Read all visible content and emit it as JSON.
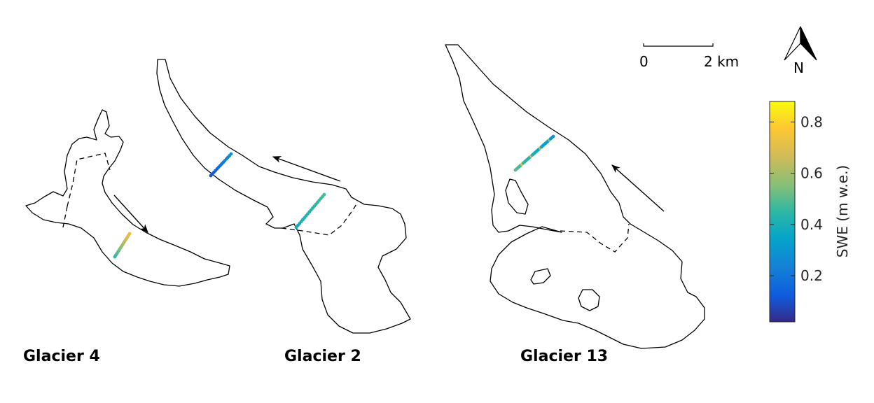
{
  "glaciers": [
    {
      "name": "Glacier 4"
    },
    {
      "name": "Glacier 2"
    },
    {
      "name": "Glacier 13"
    }
  ],
  "scale_bar": {
    "start_label": "0",
    "end_label": "2 km"
  },
  "north_arrow": {
    "label": "N",
    "icon": "north-arrow-icon"
  },
  "colorbar": {
    "label": "SWE (m w.e.)",
    "colormap": "parula",
    "range": [
      0.02,
      0.88
    ],
    "ticks": [
      {
        "value": 0.2,
        "label": "0.2"
      },
      {
        "value": 0.4,
        "label": "0.4"
      },
      {
        "value": 0.6,
        "label": "0.6"
      },
      {
        "value": 0.8,
        "label": "0.8"
      }
    ]
  },
  "transects": [
    {
      "glacier": "Glacier 4",
      "swe_start": 0.45,
      "swe_end": 0.72,
      "points": 16
    },
    {
      "glacier": "Glacier 2",
      "swe_start": 0.1,
      "swe_end": 0.28,
      "points": 14
    },
    {
      "glacier": "Glacier 2",
      "swe_start": 0.38,
      "swe_end": 0.48,
      "points": 18
    },
    {
      "glacier": "Glacier 13",
      "swe_start": 0.5,
      "swe_end": 0.3,
      "points": 30
    }
  ]
}
